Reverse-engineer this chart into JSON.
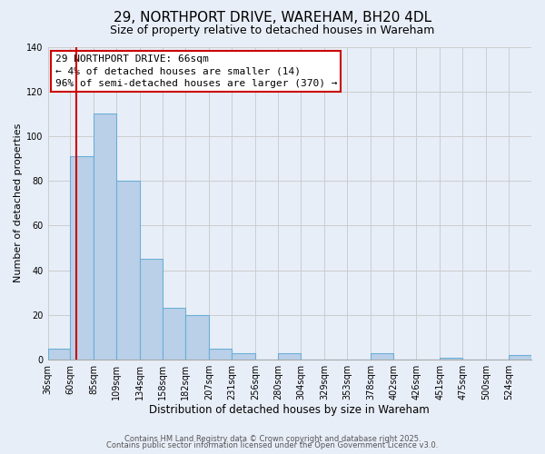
{
  "title": "29, NORTHPORT DRIVE, WAREHAM, BH20 4DL",
  "subtitle": "Size of property relative to detached houses in Wareham",
  "xlabel": "Distribution of detached houses by size in Wareham",
  "ylabel": "Number of detached properties",
  "bin_labels": [
    "36sqm",
    "60sqm",
    "85sqm",
    "109sqm",
    "134sqm",
    "158sqm",
    "182sqm",
    "207sqm",
    "231sqm",
    "256sqm",
    "280sqm",
    "304sqm",
    "329sqm",
    "353sqm",
    "378sqm",
    "402sqm",
    "426sqm",
    "451sqm",
    "475sqm",
    "500sqm",
    "524sqm"
  ],
  "bin_edges": [
    36,
    60,
    85,
    109,
    134,
    158,
    182,
    207,
    231,
    256,
    280,
    304,
    329,
    353,
    378,
    402,
    426,
    451,
    475,
    500,
    524,
    548
  ],
  "counts": [
    5,
    91,
    110,
    80,
    45,
    23,
    20,
    5,
    3,
    0,
    3,
    0,
    0,
    0,
    3,
    0,
    0,
    1,
    0,
    0,
    2
  ],
  "bar_facecolor": "#bad0e8",
  "bar_edgecolor": "#6baed6",
  "bar_linewidth": 0.8,
  "vline_x": 66,
  "vline_color": "#cc0000",
  "vline_linewidth": 1.5,
  "annotation_line1": "29 NORTHPORT DRIVE: 66sqm",
  "annotation_line2": "← 4% of detached houses are smaller (14)",
  "annotation_line3": "96% of semi-detached houses are larger (370) →",
  "annotation_box_facecolor": "white",
  "annotation_box_edgecolor": "#cc0000",
  "ylim": [
    0,
    140
  ],
  "yticks": [
    0,
    20,
    40,
    60,
    80,
    100,
    120,
    140
  ],
  "grid_color": "#cccccc",
  "background_color": "#e8eef8",
  "footer_line1": "Contains HM Land Registry data © Crown copyright and database right 2025.",
  "footer_line2": "Contains public sector information licensed under the Open Government Licence v3.0.",
  "title_fontsize": 11,
  "subtitle_fontsize": 9,
  "xlabel_fontsize": 8.5,
  "ylabel_fontsize": 8,
  "tick_fontsize": 7,
  "annotation_fontsize": 8,
  "footer_fontsize": 6
}
